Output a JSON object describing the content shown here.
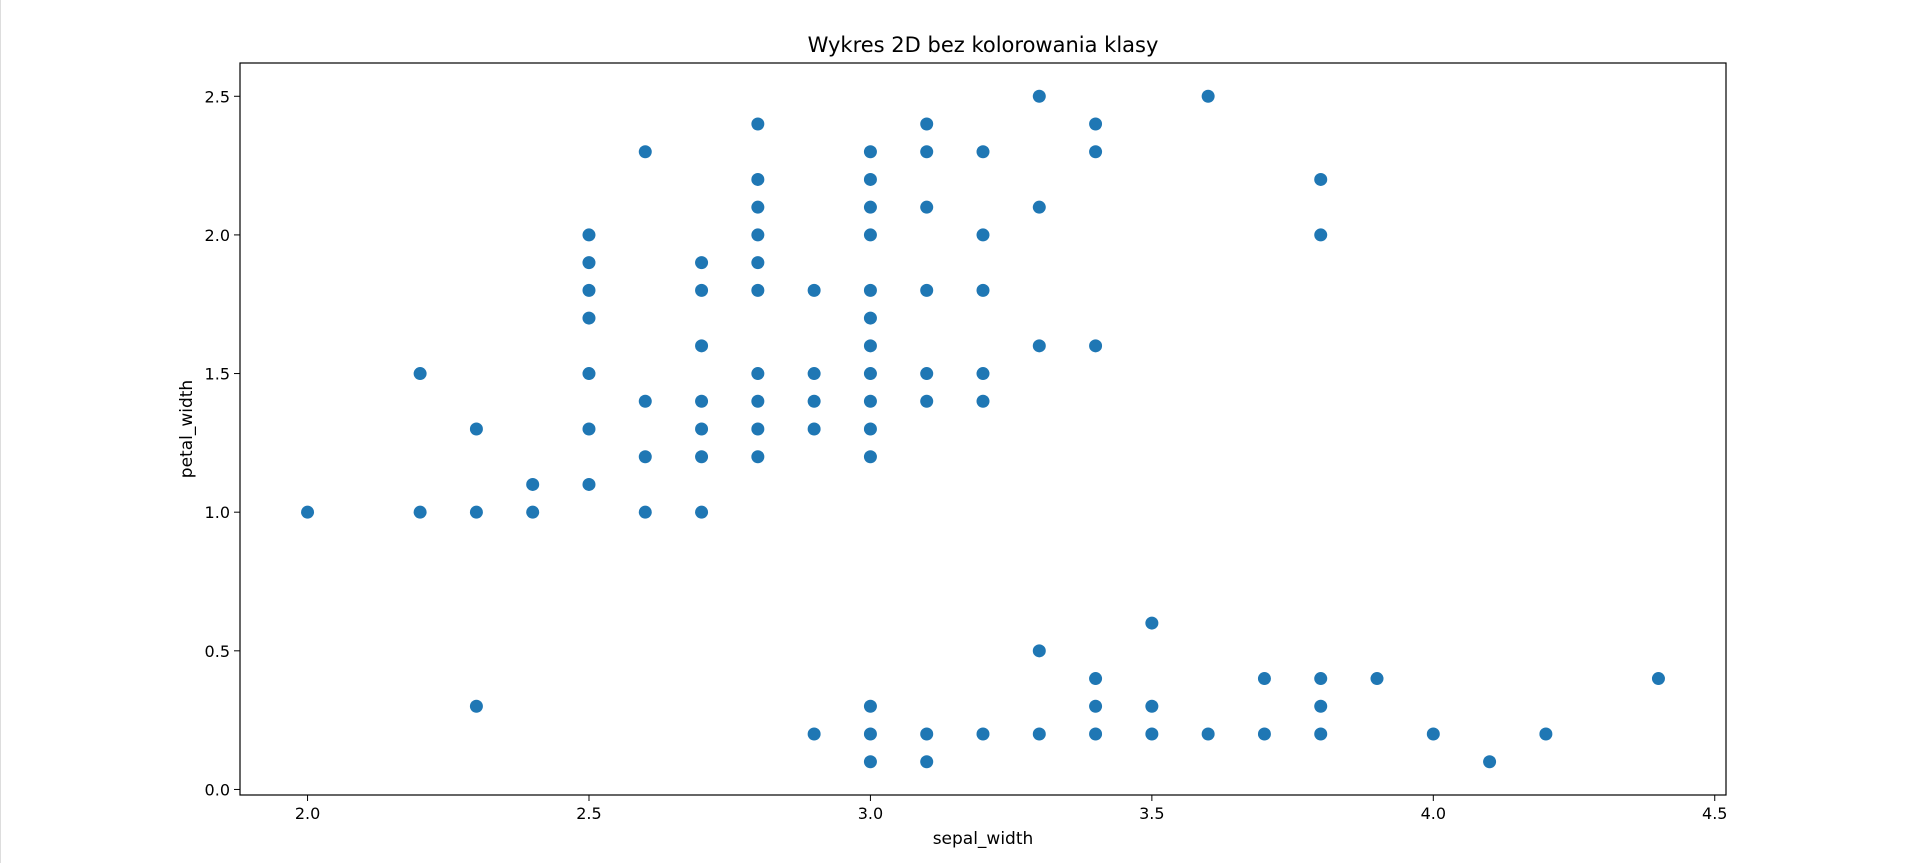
{
  "chart_data": {
    "type": "scatter",
    "title": "Wykres 2D bez kolorowania klasy",
    "xlabel": "sepal_width",
    "ylabel": "petal_width",
    "xlim": [
      1.88,
      4.52
    ],
    "ylim": [
      -0.02,
      2.62
    ],
    "xticks": [
      2.0,
      2.5,
      3.0,
      3.5,
      4.0,
      4.5
    ],
    "xtick_labels": [
      "2.0",
      "2.5",
      "3.0",
      "3.5",
      "4.0",
      "4.5"
    ],
    "yticks": [
      0.0,
      0.5,
      1.0,
      1.5,
      2.0,
      2.5
    ],
    "ytick_labels": [
      "0.0",
      "0.5",
      "1.0",
      "1.5",
      "2.0",
      "2.5"
    ],
    "grid": false,
    "marker_color": "#1f77b4",
    "points": [
      [
        2.0,
        1.0
      ],
      [
        2.2,
        1.5
      ],
      [
        2.2,
        1.0
      ],
      [
        2.3,
        1.3
      ],
      [
        2.3,
        1.0
      ],
      [
        2.3,
        0.3
      ],
      [
        2.4,
        1.1
      ],
      [
        2.4,
        1.0
      ],
      [
        2.5,
        2.0
      ],
      [
        2.5,
        1.9
      ],
      [
        2.5,
        1.8
      ],
      [
        2.5,
        1.7
      ],
      [
        2.5,
        1.5
      ],
      [
        2.5,
        1.3
      ],
      [
        2.5,
        1.1
      ],
      [
        2.6,
        2.3
      ],
      [
        2.6,
        1.4
      ],
      [
        2.6,
        1.2
      ],
      [
        2.6,
        1.0
      ],
      [
        2.7,
        1.9
      ],
      [
        2.7,
        1.8
      ],
      [
        2.7,
        1.6
      ],
      [
        2.7,
        1.4
      ],
      [
        2.7,
        1.3
      ],
      [
        2.7,
        1.2
      ],
      [
        2.7,
        1.0
      ],
      [
        2.8,
        2.4
      ],
      [
        2.8,
        2.2
      ],
      [
        2.8,
        2.1
      ],
      [
        2.8,
        2.0
      ],
      [
        2.8,
        1.9
      ],
      [
        2.8,
        1.8
      ],
      [
        2.8,
        1.5
      ],
      [
        2.8,
        1.4
      ],
      [
        2.8,
        1.3
      ],
      [
        2.8,
        1.2
      ],
      [
        2.9,
        1.8
      ],
      [
        2.9,
        1.5
      ],
      [
        2.9,
        1.4
      ],
      [
        2.9,
        1.3
      ],
      [
        2.9,
        0.2
      ],
      [
        3.0,
        2.3
      ],
      [
        3.0,
        2.2
      ],
      [
        3.0,
        2.1
      ],
      [
        3.0,
        2.0
      ],
      [
        3.0,
        1.8
      ],
      [
        3.0,
        1.7
      ],
      [
        3.0,
        1.6
      ],
      [
        3.0,
        1.5
      ],
      [
        3.0,
        1.4
      ],
      [
        3.0,
        1.3
      ],
      [
        3.0,
        1.2
      ],
      [
        3.0,
        0.3
      ],
      [
        3.0,
        0.2
      ],
      [
        3.0,
        0.1
      ],
      [
        3.1,
        2.4
      ],
      [
        3.1,
        2.3
      ],
      [
        3.1,
        2.1
      ],
      [
        3.1,
        1.8
      ],
      [
        3.1,
        1.5
      ],
      [
        3.1,
        1.4
      ],
      [
        3.1,
        0.2
      ],
      [
        3.1,
        0.1
      ],
      [
        3.2,
        2.3
      ],
      [
        3.2,
        2.0
      ],
      [
        3.2,
        1.8
      ],
      [
        3.2,
        1.5
      ],
      [
        3.2,
        1.4
      ],
      [
        3.2,
        0.2
      ],
      [
        3.3,
        2.5
      ],
      [
        3.3,
        2.1
      ],
      [
        3.3,
        1.6
      ],
      [
        3.3,
        0.5
      ],
      [
        3.3,
        0.2
      ],
      [
        3.4,
        2.4
      ],
      [
        3.4,
        2.3
      ],
      [
        3.4,
        1.6
      ],
      [
        3.4,
        0.4
      ],
      [
        3.4,
        0.3
      ],
      [
        3.4,
        0.2
      ],
      [
        3.5,
        0.6
      ],
      [
        3.5,
        0.3
      ],
      [
        3.5,
        0.2
      ],
      [
        3.6,
        2.5
      ],
      [
        3.6,
        0.2
      ],
      [
        3.7,
        0.4
      ],
      [
        3.7,
        0.2
      ],
      [
        3.8,
        2.2
      ],
      [
        3.8,
        2.0
      ],
      [
        3.8,
        0.4
      ],
      [
        3.8,
        0.3
      ],
      [
        3.8,
        0.2
      ],
      [
        3.9,
        0.4
      ],
      [
        4.0,
        0.2
      ],
      [
        4.1,
        0.1
      ],
      [
        4.2,
        0.2
      ],
      [
        4.4,
        0.4
      ]
    ]
  }
}
